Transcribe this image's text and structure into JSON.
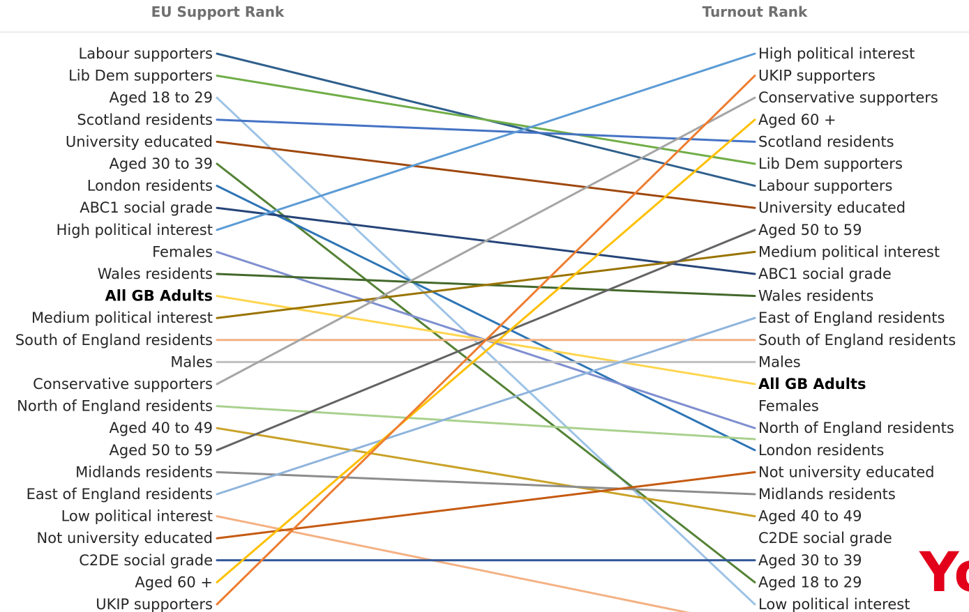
{
  "chart_data": {
    "type": "slope",
    "left_header": "EU Support Rank",
    "right_header": "Turnout Rank",
    "highlight": "All GB Adults",
    "groups": [
      {
        "name": "Labour supporters",
        "eu_rank": 1,
        "turnout_rank": 7,
        "color": "#2e5f8c"
      },
      {
        "name": "Lib Dem supporters",
        "eu_rank": 2,
        "turnout_rank": 6,
        "color": "#70ad47"
      },
      {
        "name": "Aged 18 to 29",
        "eu_rank": 3,
        "turnout_rank": 26,
        "color": "#9dc3e6"
      },
      {
        "name": "Scotland residents",
        "eu_rank": 4,
        "turnout_rank": 5,
        "color": "#4472c4"
      },
      {
        "name": "University educated",
        "eu_rank": 5,
        "turnout_rank": 8,
        "color": "#9e480e"
      },
      {
        "name": "Aged 30 to 39",
        "eu_rank": 6,
        "turnout_rank": 25,
        "color": "#548235"
      },
      {
        "name": "London residents",
        "eu_rank": 7,
        "turnout_rank": 19,
        "color": "#2e75b6"
      },
      {
        "name": "ABC1 social grade",
        "eu_rank": 8,
        "turnout_rank": 11,
        "color": "#264478"
      },
      {
        "name": "High political interest",
        "eu_rank": 9,
        "turnout_rank": 1,
        "color": "#5b9bd5"
      },
      {
        "name": "Females",
        "eu_rank": 10,
        "turnout_rank": 18,
        "color": "#7f8fd0"
      },
      {
        "name": "Wales residents",
        "eu_rank": 11,
        "turnout_rank": 12,
        "color": "#43682b"
      },
      {
        "name": "All GB Adults",
        "eu_rank": 12,
        "turnout_rank": 16,
        "color": "#ffd54f"
      },
      {
        "name": "Medium political interest",
        "eu_rank": 13,
        "turnout_rank": 10,
        "color": "#997300"
      },
      {
        "name": "South of England residents",
        "eu_rank": 14,
        "turnout_rank": 14,
        "color": "#f4b183"
      },
      {
        "name": "Males",
        "eu_rank": 15,
        "turnout_rank": 15,
        "color": "#bfbfbf"
      },
      {
        "name": "Conservative supporters",
        "eu_rank": 16,
        "turnout_rank": 3,
        "color": "#a5a5a5"
      },
      {
        "name": "North of England residents",
        "eu_rank": 17,
        "turnout_rank": 18.5,
        "color": "#a9d18e"
      },
      {
        "name": "Aged 40 to 49",
        "eu_rank": 18,
        "turnout_rank": 22,
        "color": "#c9a227"
      },
      {
        "name": "Aged 50 to 59",
        "eu_rank": 19,
        "turnout_rank": 9,
        "color": "#636363"
      },
      {
        "name": "Midlands residents",
        "eu_rank": 20,
        "turnout_rank": 21,
        "color": "#8c8c8c"
      },
      {
        "name": "East of England residents",
        "eu_rank": 21,
        "turnout_rank": 13,
        "color": "#8fb4dc"
      },
      {
        "name": "Low political interest",
        "eu_rank": 22,
        "turnout_rank": 27,
        "color": "#f4b183"
      },
      {
        "name": "Not university educated",
        "eu_rank": 23,
        "turnout_rank": 20,
        "color": "#c55a11"
      },
      {
        "name": "C2DE social grade",
        "eu_rank": 24,
        "turnout_rank": 24,
        "color": "#2f5597"
      },
      {
        "name": "Aged 60 +",
        "eu_rank": 25,
        "turnout_rank": 4,
        "color": "#ffc000"
      },
      {
        "name": "UKIP supporters",
        "eu_rank": 26,
        "turnout_rank": 2,
        "color": "#ed7d31"
      }
    ],
    "left_labels": [
      "Labour supporters",
      "Lib Dem supporters",
      "Aged 18 to 29",
      "Scotland residents",
      "University educated",
      "Aged 30 to 39",
      "London residents",
      "ABC1 social grade",
      "High political interest",
      "Females",
      "Wales residents",
      "All GB Adults",
      "Medium political interest",
      "South of England residents",
      "Males",
      "Conservative supporters",
      "North of England residents",
      "Aged 40 to 49",
      "Aged 50 to 59",
      "Midlands residents",
      "East of England residents",
      "Low political interest",
      "Not university educated",
      "C2DE social grade",
      "Aged 60 +",
      "UKIP supporters"
    ],
    "right_labels": [
      "High political interest",
      "UKIP supporters",
      "Conservative supporters",
      "Aged 60 +",
      "Scotland residents",
      "Lib Dem supporters",
      "Labour supporters",
      "University educated",
      "Aged 50 to 59",
      "Medium political interest",
      "ABC1 social grade",
      "Wales residents",
      "East of England residents",
      "South of England residents",
      "Males",
      "All GB Adults",
      "Females",
      "North of England residents",
      "London residents",
      "Not university educated",
      "Midlands residents",
      "Aged 40 to 49",
      "C2DE social grade",
      "Aged 30 to 39",
      "Aged 18 to 29",
      "Low political interest"
    ]
  },
  "logo": {
    "text": "Yo",
    "color": "#e2001a"
  },
  "colors": {
    "header": "#6f6f6f",
    "divider": "#d9d9d9",
    "label": "#262626"
  }
}
